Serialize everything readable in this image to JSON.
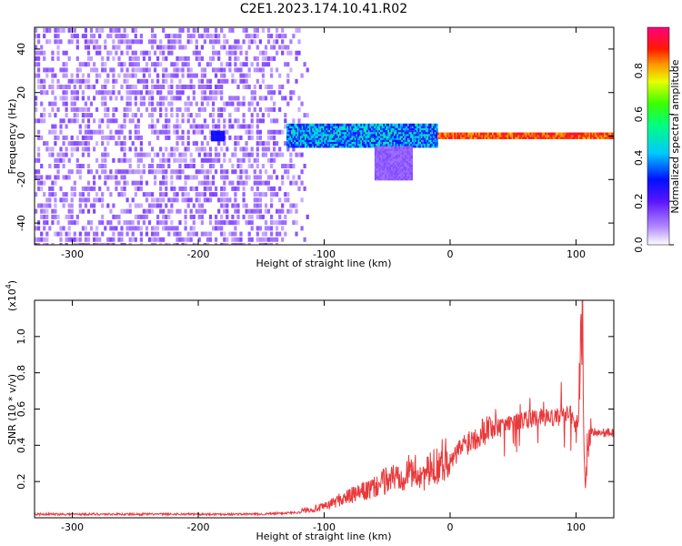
{
  "title": "C2E1.2023.174.10.41.R02",
  "chart_data": [
    {
      "type": "heatmap",
      "xlabel": "Height of straight line (km)",
      "ylabel": "Frequency (Hz)",
      "xlim": [
        -330,
        130
      ],
      "ylim": [
        -50,
        50
      ],
      "x_ticks": [
        -300,
        -200,
        -100,
        0,
        100
      ],
      "y_ticks": [
        -40,
        -20,
        0,
        20,
        40
      ],
      "colorbar": {
        "label": "Normalized spectral amplitude",
        "range": [
          0.0,
          1.0
        ],
        "ticks": [
          0.0,
          0.2,
          0.4,
          0.6,
          0.8
        ]
      },
      "regions": [
        {
          "x": [
            -330,
            -110
          ],
          "freq_range": [
            -50,
            50
          ],
          "amplitude": [
            0.05,
            0.15
          ]
        },
        {
          "x": [
            -190,
            -180
          ],
          "freq_range": [
            -2,
            2
          ],
          "amplitude": [
            0.25,
            0.3
          ]
        },
        {
          "x": [
            -130,
            -10
          ],
          "freq_range": [
            -5,
            5
          ],
          "amplitude": [
            0.2,
            0.55
          ]
        },
        {
          "x": [
            -60,
            -30
          ],
          "freq_range": [
            -20,
            -5
          ],
          "amplitude": [
            0.1,
            0.15
          ]
        },
        {
          "x": [
            -10,
            130
          ],
          "freq_range": [
            -1,
            1
          ],
          "amplitude": [
            0.8,
            0.95
          ]
        }
      ]
    },
    {
      "type": "line",
      "xlabel": "Height of straight line (km)",
      "ylabel": "SNR (10 * v/v)",
      "y_multiplier": "(x10",
      "y_multiplier_exp": "4",
      "y_multiplier_close": ")",
      "xlim": [
        -330,
        130
      ],
      "ylim": [
        0,
        1.2
      ],
      "x_ticks": [
        -300,
        -200,
        -100,
        0,
        100
      ],
      "y_ticks": [
        0.2,
        0.4,
        0.6,
        0.8,
        1.0
      ],
      "line_color": "#e8393b",
      "series": [
        {
          "x": [
            -330,
            -300,
            -250,
            -200,
            -150,
            -120,
            -100,
            -90,
            -80,
            -70,
            -60,
            -50,
            -40,
            -30,
            -20,
            -10,
            0,
            10,
            20,
            30,
            40,
            50,
            60,
            70,
            80,
            90,
            95,
            100,
            103,
            105,
            107,
            110,
            120,
            130
          ],
          "y": [
            0.02,
            0.02,
            0.02,
            0.02,
            0.02,
            0.03,
            0.05,
            0.08,
            0.1,
            0.12,
            0.14,
            0.18,
            0.2,
            0.22,
            0.2,
            0.25,
            0.3,
            0.4,
            0.45,
            0.5,
            0.52,
            0.53,
            0.54,
            0.55,
            0.55,
            0.56,
            0.6,
            0.5,
            0.8,
            1.2,
            0.15,
            0.48,
            0.47,
            0.47
          ]
        }
      ]
    }
  ]
}
